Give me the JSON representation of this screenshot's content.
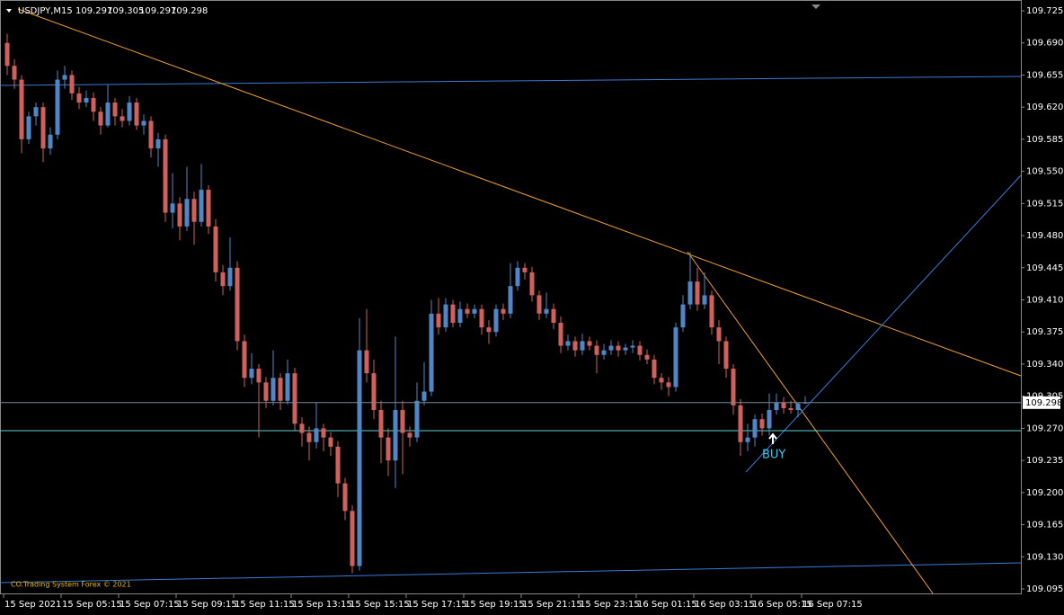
{
  "chart_data": {
    "type": "candlestick",
    "symbol": "USDJPY,M15",
    "bull_color": "#4f86c6",
    "bear_color": "#d0605b",
    "ylim": [
      109.095,
      109.725
    ],
    "yticks": [
      109.725,
      {
        "value": 109.69,
        "label": "109.690"
      },
      109.655,
      {
        "value": 109.62,
        "label": "109.620"
      },
      109.585,
      {
        "value": 109.55,
        "label": "109.550"
      },
      109.515,
      {
        "value": 109.48,
        "label": "109.480"
      },
      109.445,
      {
        "value": 109.41,
        "label": "109.410"
      },
      109.375,
      {
        "value": 109.34,
        "label": "109.340"
      },
      109.305,
      {
        "value": 109.27,
        "label": "109.270"
      },
      109.235,
      {
        "value": 109.2,
        "label": "109.200"
      },
      109.165,
      {
        "value": 109.13,
        "label": "109.130"
      },
      109.095
    ],
    "categories": [
      "15 Sep 2021",
      null,
      null,
      null,
      null,
      null,
      null,
      null,
      "15 Sep 05:15",
      null,
      null,
      null,
      null,
      null,
      null,
      null,
      "15 Sep 07:15",
      null,
      null,
      null,
      null,
      null,
      null,
      null,
      "15 Sep 09:15",
      null,
      null,
      null,
      null,
      null,
      null,
      null,
      "15 Sep 11:15",
      null,
      null,
      null,
      null,
      null,
      null,
      null,
      "15 Sep 13:15",
      null,
      null,
      null,
      null,
      null,
      null,
      null,
      "15 Sep 15:15",
      null,
      null,
      null,
      null,
      null,
      null,
      null,
      "15 Sep 17:15",
      null,
      null,
      null,
      null,
      null,
      null,
      null,
      "15 Sep 19:15",
      null,
      null,
      null,
      null,
      null,
      null,
      null,
      "15 Sep 21:15",
      null,
      null,
      null,
      null,
      null,
      null,
      null,
      "15 Sep 23:15",
      null,
      null,
      null,
      null,
      null,
      null,
      null,
      "16 Sep 01:15",
      null,
      null,
      null,
      null,
      null,
      null,
      null,
      "16 Sep 03:15",
      null,
      null,
      null,
      null,
      null,
      null,
      null,
      "16 Sep 05:15",
      null,
      null,
      null,
      null,
      null,
      null,
      "16 Sep 07:15"
    ],
    "candles": [
      [
        109.69,
        109.7,
        109.655,
        109.665
      ],
      [
        109.665,
        109.672,
        109.64,
        109.65
      ],
      [
        109.65,
        109.655,
        109.57,
        109.585
      ],
      [
        109.585,
        109.615,
        109.58,
        109.61
      ],
      [
        109.61,
        109.625,
        109.6,
        109.62
      ],
      [
        109.62,
        109.625,
        109.56,
        109.575
      ],
      [
        109.575,
        109.598,
        109.568,
        109.59
      ],
      [
        109.59,
        109.66,
        109.585,
        109.65
      ],
      [
        109.65,
        109.665,
        109.64,
        109.655
      ],
      [
        109.655,
        109.66,
        109.628,
        109.635
      ],
      [
        109.635,
        109.642,
        109.618,
        109.625
      ],
      [
        109.625,
        109.638,
        109.62,
        109.63
      ],
      [
        109.63,
        109.636,
        109.605,
        109.615
      ],
      [
        109.615,
        109.62,
        109.59,
        109.6
      ],
      [
        109.6,
        109.645,
        109.598,
        109.625
      ],
      [
        109.625,
        109.63,
        109.6,
        109.61
      ],
      [
        109.61,
        109.618,
        109.598,
        109.605
      ],
      [
        109.605,
        109.632,
        109.6,
        109.625
      ],
      [
        109.625,
        109.63,
        109.595,
        109.6
      ],
      [
        109.6,
        109.612,
        109.59,
        109.605
      ],
      [
        109.605,
        109.61,
        109.565,
        109.575
      ],
      [
        109.575,
        109.592,
        109.555,
        109.585
      ],
      [
        109.585,
        109.59,
        109.495,
        109.505
      ],
      [
        109.505,
        109.548,
        109.488,
        109.515
      ],
      [
        109.515,
        109.522,
        109.475,
        109.49
      ],
      [
        109.49,
        109.555,
        109.485,
        109.52
      ],
      [
        109.52,
        109.528,
        109.47,
        109.495
      ],
      [
        109.495,
        109.558,
        109.49,
        109.53
      ],
      [
        109.53,
        109.535,
        109.482,
        109.49
      ],
      [
        109.49,
        109.498,
        109.43,
        109.44
      ],
      [
        109.44,
        109.448,
        109.415,
        109.425
      ],
      [
        109.425,
        109.478,
        109.42,
        109.445
      ],
      [
        109.445,
        109.452,
        109.355,
        109.365
      ],
      [
        109.365,
        109.372,
        109.315,
        109.325
      ],
      [
        109.325,
        109.352,
        109.318,
        109.335
      ],
      [
        109.335,
        109.34,
        109.26,
        109.32
      ],
      [
        109.32,
        109.326,
        109.292,
        109.3
      ],
      [
        109.3,
        109.355,
        109.295,
        109.325
      ],
      [
        109.325,
        109.33,
        109.29,
        109.3
      ],
      [
        109.3,
        109.345,
        109.296,
        109.33
      ],
      [
        109.33,
        109.336,
        109.268,
        109.275
      ],
      [
        109.275,
        109.282,
        109.25,
        109.265
      ],
      [
        109.265,
        109.272,
        109.235,
        109.255
      ],
      [
        109.255,
        109.298,
        109.248,
        109.27
      ],
      [
        109.27,
        109.275,
        109.245,
        109.26
      ],
      [
        109.26,
        109.266,
        109.24,
        109.25
      ],
      [
        109.25,
        109.256,
        109.195,
        109.21
      ],
      [
        109.21,
        109.216,
        109.17,
        109.18
      ],
      [
        109.18,
        109.186,
        109.112,
        109.12
      ],
      [
        109.12,
        109.39,
        109.115,
        109.355
      ],
      [
        109.355,
        109.4,
        109.32,
        109.33
      ],
      [
        109.33,
        109.345,
        109.28,
        109.29
      ],
      [
        109.29,
        109.3,
        109.232,
        109.26
      ],
      [
        109.26,
        109.27,
        109.218,
        109.235
      ],
      [
        109.235,
        109.37,
        109.205,
        109.29
      ],
      [
        109.29,
        109.3,
        109.22,
        109.265
      ],
      [
        109.265,
        109.272,
        109.25,
        109.26
      ],
      [
        109.26,
        109.32,
        109.255,
        109.3
      ],
      [
        109.3,
        109.342,
        109.295,
        109.31
      ],
      [
        109.31,
        109.41,
        109.305,
        109.395
      ],
      [
        109.395,
        109.412,
        109.372,
        109.38
      ],
      [
        109.38,
        109.412,
        109.375,
        109.405
      ],
      [
        109.405,
        109.41,
        109.38,
        109.385
      ],
      [
        109.385,
        109.408,
        109.38,
        109.4
      ],
      [
        109.4,
        109.406,
        109.39,
        109.395
      ],
      [
        109.395,
        109.405,
        109.39,
        109.4
      ],
      [
        109.4,
        109.405,
        109.372,
        109.38
      ],
      [
        109.38,
        109.388,
        109.362,
        109.375
      ],
      [
        109.375,
        109.405,
        109.37,
        109.4
      ],
      [
        109.4,
        109.406,
        109.388,
        109.395
      ],
      [
        109.395,
        109.45,
        109.39,
        109.425
      ],
      [
        109.425,
        109.452,
        109.42,
        109.445
      ],
      [
        109.445,
        109.45,
        109.432,
        109.44
      ],
      [
        109.44,
        109.446,
        109.408,
        109.415
      ],
      [
        109.415,
        109.42,
        109.388,
        109.395
      ],
      [
        109.395,
        109.418,
        109.39,
        109.4
      ],
      [
        109.4,
        109.406,
        109.378,
        109.385
      ],
      [
        109.385,
        109.392,
        109.352,
        109.36
      ],
      [
        109.36,
        109.372,
        109.355,
        109.365
      ],
      [
        109.365,
        109.37,
        109.348,
        109.355
      ],
      [
        109.355,
        109.373,
        109.35,
        109.365
      ],
      [
        109.365,
        109.37,
        109.355,
        109.36
      ],
      [
        109.36,
        109.366,
        109.33,
        109.35
      ],
      [
        109.35,
        109.362,
        109.345,
        109.355
      ],
      [
        109.355,
        109.366,
        109.35,
        109.36
      ],
      [
        109.36,
        109.365,
        109.348,
        109.355
      ],
      [
        109.355,
        109.362,
        109.35,
        109.358
      ],
      [
        109.358,
        109.366,
        109.352,
        109.36
      ],
      [
        109.36,
        109.365,
        109.344,
        109.35
      ],
      [
        109.35,
        109.356,
        109.34,
        109.345
      ],
      [
        109.345,
        109.35,
        109.318,
        109.325
      ],
      [
        109.325,
        109.33,
        109.312,
        109.32
      ],
      [
        109.32,
        109.326,
        109.305,
        109.315
      ],
      [
        109.315,
        109.385,
        109.31,
        109.38
      ],
      [
        109.38,
        109.415,
        109.375,
        109.405
      ],
      [
        109.405,
        109.462,
        109.4,
        109.43
      ],
      [
        109.43,
        109.445,
        109.398,
        109.405
      ],
      [
        109.405,
        109.44,
        109.4,
        109.415
      ],
      [
        109.415,
        109.42,
        109.372,
        109.38
      ],
      [
        109.38,
        109.388,
        109.34,
        109.365
      ],
      [
        109.365,
        109.37,
        109.325,
        109.335
      ],
      [
        109.335,
        109.34,
        109.285,
        109.295
      ],
      [
        109.295,
        109.302,
        109.24,
        109.255
      ],
      [
        109.255,
        109.275,
        109.245,
        109.26
      ],
      [
        109.26,
        109.285,
        109.25,
        109.28
      ],
      [
        109.28,
        109.286,
        109.262,
        109.27
      ],
      [
        109.27,
        109.308,
        109.262,
        109.29
      ],
      [
        109.29,
        109.308,
        109.285,
        109.298
      ],
      [
        109.298,
        109.304,
        109.286,
        109.292
      ],
      [
        109.292,
        109.3,
        109.286,
        109.29
      ],
      [
        109.29,
        109.298,
        109.282,
        109.297
      ],
      [
        109.297,
        109.305,
        109.297,
        109.298
      ]
    ],
    "signal": "BUY",
    "footer": "CO.Trading System Forex © 2021"
  }
}
